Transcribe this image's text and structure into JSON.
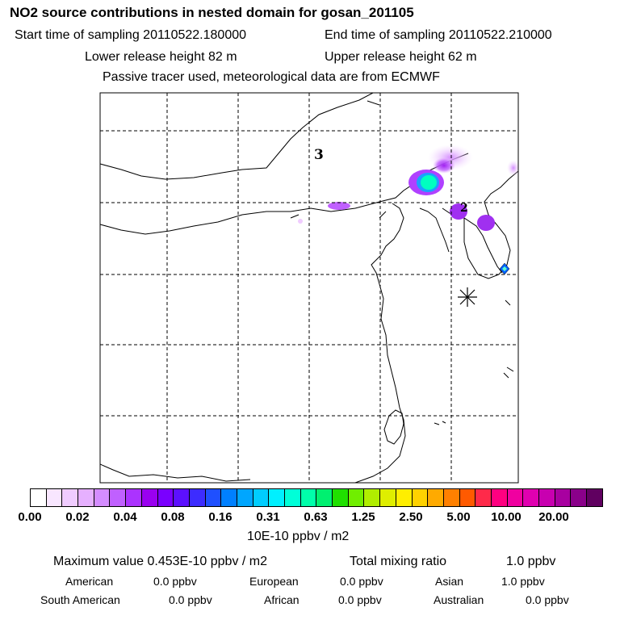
{
  "header": {
    "title": "NO2 source contributions in nested domain for gosan_201105",
    "start_time": "Start time of sampling 20110522.180000",
    "end_time": "End time of sampling 20110522.210000",
    "lower_height": "Lower release height   82 m",
    "upper_height": "Upper release height   62 m",
    "tracer_note": "Passive tracer used, meteorological data are from ECMWF"
  },
  "map": {
    "labels": {
      "site3": "3",
      "site2": "2"
    },
    "marker": "asterisk-marker"
  },
  "colorbar": {
    "colors": [
      "#ffffff",
      "#f8e6ff",
      "#f0ccff",
      "#e6b0ff",
      "#d48cff",
      "#c060ff",
      "#ab33ff",
      "#9a00f0",
      "#7a00ff",
      "#5c10ff",
      "#3d2cff",
      "#1f50ff",
      "#0080ff",
      "#00a6ff",
      "#00cdff",
      "#00f0ff",
      "#00ffd8",
      "#00ffaa",
      "#00f070",
      "#20e000",
      "#70ee00",
      "#b0ee00",
      "#dfee00",
      "#ffee00",
      "#ffd200",
      "#ffaa00",
      "#ff8000",
      "#ff5a00",
      "#ff2a4a",
      "#ff0080",
      "#f000a0",
      "#e000b0",
      "#c800b0",
      "#a800a0",
      "#8a008a",
      "#600060"
    ],
    "ticks": [
      "0.00",
      "0.02",
      "0.04",
      "0.08",
      "0.16",
      "0.31",
      "0.63",
      "1.25",
      "2.50",
      "5.00",
      "10.00",
      "20.00"
    ],
    "units": "10E-10 ppbv / m2"
  },
  "summary": {
    "max_value": "Maximum value  0.453E-10 ppbv / m2",
    "total_label": "Total mixing ratio",
    "total_value": "1.0 ppbv",
    "regions": [
      {
        "name": "American",
        "value": "0.0 ppbv"
      },
      {
        "name": "European",
        "value": "0.0 ppbv"
      },
      {
        "name": "Asian",
        "value": "1.0 ppbv"
      },
      {
        "name": "South American",
        "value": "0.0 ppbv"
      },
      {
        "name": "African",
        "value": "0.0 ppbv"
      },
      {
        "name": "Australian",
        "value": "0.0 ppbv"
      }
    ]
  }
}
